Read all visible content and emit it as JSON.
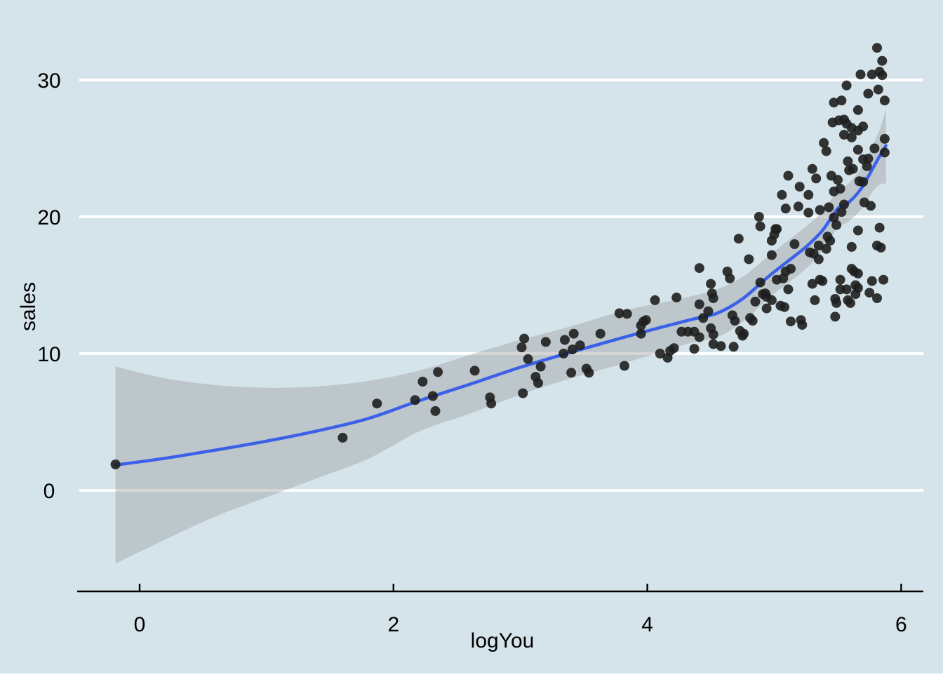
{
  "chart_data": {
    "type": "scatter",
    "title": "",
    "xlabel": "logYou",
    "ylabel": "sales",
    "x_ticks": [
      0,
      2,
      4,
      6
    ],
    "y_ticks": [
      0,
      10,
      20,
      30
    ],
    "x_tick_labels": [
      "0",
      "2",
      "4",
      "6"
    ],
    "y_tick_labels": [
      "0",
      "10",
      "20",
      "30"
    ],
    "xlim": [
      -0.5,
      6.2
    ],
    "ylim": [
      -7.4,
      35.8
    ],
    "grid": "horizontal-white",
    "legend": false,
    "colors": {
      "background": "#d5e4eb",
      "grid": "#ffffff",
      "ribbon": "rgba(153,153,153,0.40)",
      "line": "#3b61e8",
      "point": "#1f1f1f",
      "axis": "#000000"
    },
    "smooth_line": [
      [
        -0.19,
        1.85
      ],
      [
        0.2,
        2.35
      ],
      [
        0.6,
        2.95
      ],
      [
        1.0,
        3.6
      ],
      [
        1.4,
        4.35
      ],
      [
        1.8,
        5.25
      ],
      [
        2.2,
        6.55
      ],
      [
        2.6,
        7.75
      ],
      [
        3.0,
        9.0
      ],
      [
        3.4,
        10.1
      ],
      [
        3.8,
        11.15
      ],
      [
        4.1,
        11.9
      ],
      [
        4.35,
        12.5
      ],
      [
        4.55,
        12.95
      ],
      [
        4.75,
        14.0
      ],
      [
        4.95,
        15.6
      ],
      [
        5.1,
        16.7
      ],
      [
        5.25,
        17.8
      ],
      [
        5.38,
        19.0
      ],
      [
        5.5,
        20.6
      ],
      [
        5.58,
        21.0
      ],
      [
        5.68,
        22.0
      ],
      [
        5.78,
        23.6
      ],
      [
        5.84,
        24.6
      ],
      [
        5.88,
        25.2
      ]
    ],
    "ribbon_upper": [
      [
        -0.19,
        9.05
      ],
      [
        0.2,
        8.2
      ],
      [
        0.6,
        7.7
      ],
      [
        1.0,
        7.5
      ],
      [
        1.4,
        7.6
      ],
      [
        1.8,
        8.0
      ],
      [
        2.2,
        8.75
      ],
      [
        2.6,
        9.9
      ],
      [
        3.0,
        11.0
      ],
      [
        3.4,
        12.0
      ],
      [
        3.8,
        13.1
      ],
      [
        4.1,
        13.7
      ],
      [
        4.35,
        14.2
      ],
      [
        4.55,
        14.7
      ],
      [
        4.75,
        15.6
      ],
      [
        4.95,
        17.1
      ],
      [
        5.1,
        18.2
      ],
      [
        5.25,
        19.3
      ],
      [
        5.38,
        20.4
      ],
      [
        5.5,
        21.9
      ],
      [
        5.58,
        22.4
      ],
      [
        5.68,
        23.5
      ],
      [
        5.78,
        25.3
      ],
      [
        5.84,
        26.6
      ],
      [
        5.88,
        27.9
      ]
    ],
    "ribbon_lower": [
      [
        -0.19,
        -5.35
      ],
      [
        0.2,
        -3.6
      ],
      [
        0.6,
        -1.9
      ],
      [
        1.0,
        -0.5
      ],
      [
        1.4,
        0.9
      ],
      [
        1.8,
        2.3
      ],
      [
        2.2,
        4.3
      ],
      [
        2.6,
        5.6
      ],
      [
        3.0,
        7.0
      ],
      [
        3.4,
        8.2
      ],
      [
        3.8,
        9.25
      ],
      [
        4.1,
        10.1
      ],
      [
        4.35,
        10.8
      ],
      [
        4.55,
        11.2
      ],
      [
        4.75,
        12.3
      ],
      [
        4.95,
        14.0
      ],
      [
        5.1,
        15.1
      ],
      [
        5.25,
        16.2
      ],
      [
        5.38,
        17.5
      ],
      [
        5.5,
        19.2
      ],
      [
        5.58,
        19.6
      ],
      [
        5.68,
        20.5
      ],
      [
        5.78,
        21.9
      ],
      [
        5.84,
        22.4
      ],
      [
        5.88,
        22.4
      ]
    ],
    "points": [
      [
        -0.19,
        1.9
      ],
      [
        1.6,
        3.85
      ],
      [
        1.87,
        6.35
      ],
      [
        2.17,
        6.6
      ],
      [
        2.23,
        7.95
      ],
      [
        2.31,
        6.9
      ],
      [
        2.33,
        5.8
      ],
      [
        2.35,
        8.65
      ],
      [
        2.64,
        8.75
      ],
      [
        2.76,
        6.8
      ],
      [
        2.77,
        6.35
      ],
      [
        3.03,
        11.1
      ],
      [
        3.01,
        10.45
      ],
      [
        3.02,
        7.1
      ],
      [
        3.06,
        9.6
      ],
      [
        3.12,
        8.3
      ],
      [
        3.14,
        7.85
      ],
      [
        3.16,
        9.05
      ],
      [
        3.2,
        10.85
      ],
      [
        3.35,
        11.0
      ],
      [
        3.42,
        11.45
      ],
      [
        3.34,
        10.0
      ],
      [
        3.41,
        10.3
      ],
      [
        3.47,
        10.6
      ],
      [
        3.4,
        8.6
      ],
      [
        3.52,
        8.9
      ],
      [
        3.54,
        8.6
      ],
      [
        3.63,
        11.45
      ],
      [
        3.78,
        12.95
      ],
      [
        3.84,
        12.9
      ],
      [
        3.82,
        9.1
      ],
      [
        3.95,
        12.05
      ],
      [
        3.97,
        12.35
      ],
      [
        3.99,
        12.45
      ],
      [
        3.95,
        11.45
      ],
      [
        4.06,
        13.9
      ],
      [
        4.1,
        10.0
      ],
      [
        4.16,
        9.7
      ],
      [
        4.18,
        10.2
      ],
      [
        4.21,
        10.4
      ],
      [
        4.23,
        14.1
      ],
      [
        4.27,
        11.6
      ],
      [
        4.32,
        11.6
      ],
      [
        4.37,
        11.6
      ],
      [
        4.37,
        10.35
      ],
      [
        4.41,
        11.2
      ],
      [
        4.41,
        16.25
      ],
      [
        4.41,
        13.6
      ],
      [
        4.48,
        13.1
      ],
      [
        4.44,
        12.6
      ],
      [
        4.5,
        15.1
      ],
      [
        4.51,
        14.4
      ],
      [
        4.52,
        14.05
      ],
      [
        4.5,
        11.85
      ],
      [
        4.52,
        11.4
      ],
      [
        4.52,
        10.7
      ],
      [
        4.58,
        10.55
      ],
      [
        4.63,
        16.0
      ],
      [
        4.65,
        15.5
      ],
      [
        4.67,
        12.8
      ],
      [
        4.69,
        12.4
      ],
      [
        4.68,
        10.5
      ],
      [
        4.72,
        18.4
      ],
      [
        4.73,
        11.65
      ],
      [
        4.76,
        11.45
      ],
      [
        4.75,
        11.3
      ],
      [
        4.8,
        16.9
      ],
      [
        4.81,
        12.6
      ],
      [
        4.83,
        12.4
      ],
      [
        4.85,
        13.8
      ],
      [
        4.89,
        15.2
      ],
      [
        4.91,
        14.35
      ],
      [
        4.93,
        14.4
      ],
      [
        4.94,
        14.15
      ],
      [
        4.98,
        18.25
      ],
      [
        5.0,
        18.7
      ],
      [
        4.98,
        17.2
      ],
      [
        4.98,
        13.9
      ],
      [
        4.94,
        13.3
      ],
      [
        5.02,
        15.4
      ],
      [
        5.05,
        13.5
      ],
      [
        5.08,
        13.4
      ],
      [
        5.07,
        15.5
      ],
      [
        5.09,
        16.0
      ],
      [
        5.13,
        16.2
      ],
      [
        5.11,
        14.7
      ],
      [
        5.16,
        18.0
      ],
      [
        5.13,
        12.35
      ],
      [
        4.88,
        20.0
      ],
      [
        4.89,
        19.3
      ],
      [
        5.01,
        19.1
      ],
      [
        5.21,
        12.45
      ],
      [
        5.22,
        12.1
      ],
      [
        5.3,
        15.1
      ],
      [
        5.36,
        15.4
      ],
      [
        5.38,
        15.3
      ],
      [
        5.32,
        13.9
      ],
      [
        5.48,
        14.0
      ],
      [
        5.49,
        13.7
      ],
      [
        5.48,
        12.7
      ],
      [
        5.52,
        15.4
      ],
      [
        5.52,
        14.7
      ],
      [
        5.57,
        14.7
      ],
      [
        5.58,
        13.9
      ],
      [
        5.6,
        13.7
      ],
      [
        5.61,
        16.2
      ],
      [
        5.63,
        16.0
      ],
      [
        5.66,
        15.85
      ],
      [
        5.64,
        15.0
      ],
      [
        5.66,
        14.8
      ],
      [
        5.64,
        14.35
      ],
      [
        5.77,
        15.3
      ],
      [
        5.86,
        15.4
      ],
      [
        5.75,
        14.45
      ],
      [
        5.81,
        14.05
      ],
      [
        5.81,
        17.9
      ],
      [
        5.84,
        17.75
      ],
      [
        5.61,
        17.8
      ],
      [
        5.42,
        18.55
      ],
      [
        5.44,
        18.25
      ],
      [
        5.41,
        17.65
      ],
      [
        5.28,
        17.4
      ],
      [
        5.31,
        17.3
      ],
      [
        5.35,
        16.9
      ],
      [
        5.35,
        17.9
      ],
      [
        5.83,
        19.2
      ],
      [
        5.81,
        32.35
      ],
      [
        5.85,
        31.4
      ],
      [
        5.68,
        30.4
      ],
      [
        5.77,
        30.4
      ],
      [
        5.83,
        30.6
      ],
      [
        5.85,
        30.35
      ],
      [
        5.57,
        29.6
      ],
      [
        5.74,
        29.0
      ],
      [
        5.82,
        29.3
      ],
      [
        5.47,
        28.35
      ],
      [
        5.53,
        28.5
      ],
      [
        5.87,
        28.5
      ],
      [
        5.66,
        27.8
      ],
      [
        5.46,
        26.9
      ],
      [
        5.51,
        27.05
      ],
      [
        5.55,
        27.1
      ],
      [
        5.57,
        26.8
      ],
      [
        5.61,
        26.5
      ],
      [
        5.66,
        26.3
      ],
      [
        5.7,
        26.6
      ],
      [
        5.55,
        26.0
      ],
      [
        5.61,
        25.8
      ],
      [
        5.39,
        25.4
      ],
      [
        5.41,
        24.8
      ],
      [
        5.66,
        24.9
      ],
      [
        5.79,
        25.0
      ],
      [
        5.87,
        25.7
      ],
      [
        5.87,
        24.7
      ],
      [
        5.7,
        24.2
      ],
      [
        5.74,
        24.25
      ],
      [
        5.73,
        23.7
      ],
      [
        5.58,
        24.05
      ],
      [
        5.62,
        23.5
      ],
      [
        5.59,
        23.4
      ],
      [
        5.3,
        23.5
      ],
      [
        5.11,
        23.0
      ],
      [
        5.33,
        22.8
      ],
      [
        5.45,
        23.0
      ],
      [
        5.5,
        22.7
      ],
      [
        5.67,
        22.6
      ],
      [
        5.7,
        22.55
      ],
      [
        5.06,
        21.6
      ],
      [
        5.2,
        22.2
      ],
      [
        5.27,
        21.6
      ],
      [
        5.09,
        20.6
      ],
      [
        5.19,
        20.75
      ],
      [
        5.27,
        20.3
      ],
      [
        5.36,
        20.5
      ],
      [
        5.43,
        20.7
      ],
      [
        5.47,
        19.95
      ],
      [
        5.53,
        20.35
      ],
      [
        5.55,
        20.9
      ],
      [
        5.71,
        21.05
      ],
      [
        5.76,
        20.8
      ],
      [
        5.49,
        19.4
      ],
      [
        5.66,
        19.0
      ],
      [
        5.02,
        19.1
      ],
      [
        5.47,
        21.85
      ],
      [
        5.52,
        22.05
      ]
    ]
  }
}
